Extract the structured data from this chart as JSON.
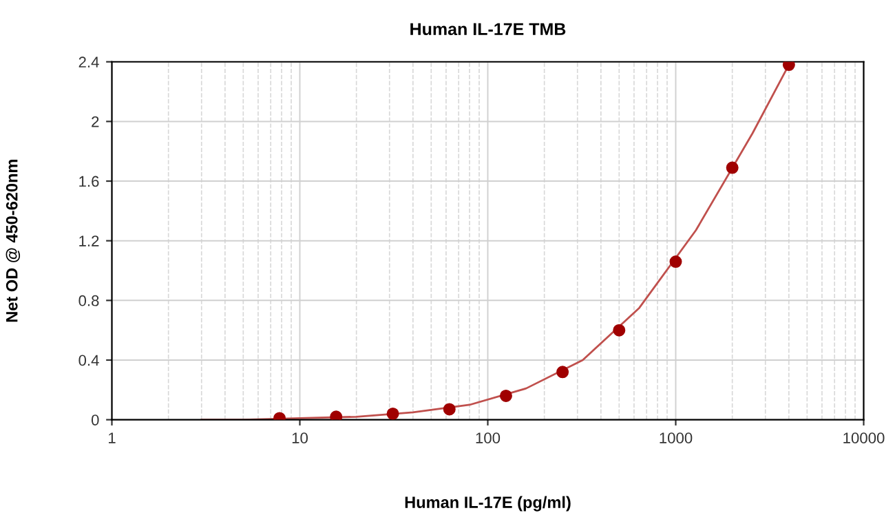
{
  "chart_data": {
    "type": "scatter",
    "title": "Human IL-17E TMB",
    "xlabel": "Human IL-17E (pg/ml)",
    "ylabel": "Net OD @ 450-620nm",
    "log": "x",
    "grid": true,
    "marker": "circle",
    "xlim": [
      1,
      10000
    ],
    "xticks": [
      1,
      10,
      100,
      1000,
      10000
    ],
    "ylim": [
      0,
      2.4
    ],
    "yticks": [
      0,
      0.4,
      0.8,
      1.2,
      1.6,
      2,
      2.4
    ],
    "series": [
      {
        "type": "line",
        "color": "#c0504d",
        "marker": "none",
        "x": [
          3,
          5,
          10,
          20,
          40,
          80,
          160,
          320,
          640,
          1280,
          2560,
          4000
        ],
        "values": [
          0,
          0,
          0.01,
          0.02,
          0.05,
          0.1,
          0.21,
          0.4,
          0.75,
          1.27,
          1.92,
          2.38
        ]
      },
      {
        "color": "#a00000",
        "x": [
          7.8,
          15.6,
          31.25,
          62.5,
          125,
          250,
          500,
          1000,
          2000,
          4000
        ],
        "values": [
          0.01,
          0.02,
          0.04,
          0.07,
          0.16,
          0.32,
          0.6,
          1.06,
          1.69,
          2.38
        ]
      }
    ]
  }
}
